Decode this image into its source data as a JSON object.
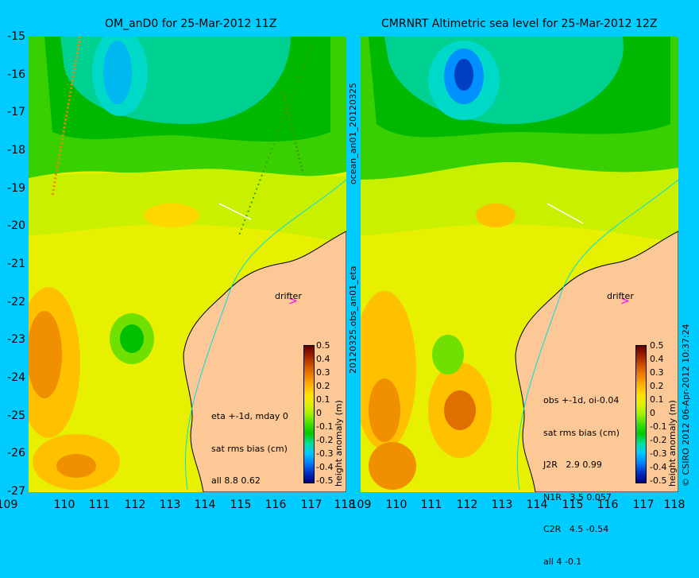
{
  "titles": {
    "left": "OM_anD0 for 25-Mar-2012 11Z",
    "right": "CMRNRT Altimetric sea level  for 25-Mar-2012 12Z"
  },
  "axes": {
    "lat_ticks": [
      "-15",
      "-16",
      "-17",
      "-18",
      "-19",
      "-20",
      "-21",
      "-22",
      "-23",
      "-24",
      "-25",
      "-26",
      "-27"
    ],
    "lon_ticks": [
      "109",
      "110",
      "111",
      "112",
      "113",
      "114",
      "115",
      "116",
      "117",
      "118"
    ]
  },
  "side_labels": {
    "middle_top": "ocean_an01_20120325",
    "middle_bottom": "20120325.obs_an01_eta",
    "credit": "© CSIRO 2012  06-Apr-2012 10:37:24"
  },
  "left_panel": {
    "drifter": "drifter",
    "stats": [
      "eta +-1d, mday 0",
      "sat rms bias (cm)",
      "all 8.8 0.62"
    ]
  },
  "right_panel": {
    "drifter": "drifter",
    "stats": [
      "obs +-1d, oi-0.04",
      "sat rms bias (cm)",
      "J2R   2.9 0.99",
      "N1R   3.5 0.057",
      "C2R   4.5 -0.54",
      "all 4 -0.1"
    ]
  },
  "colorbar": {
    "label": "height anomaly (m)",
    "ticks": [
      "0.5",
      "0.4",
      "0.3",
      "0.2",
      "0.1",
      "0",
      "-0.1",
      "-0.2",
      "-0.3",
      "-0.4",
      "-0.5"
    ],
    "colors": [
      "#000080",
      "#0030c0",
      "#0080ff",
      "#00c8ff",
      "#00e0a0",
      "#00c800",
      "#40e000",
      "#a0f000",
      "#e0f000",
      "#ffe000",
      "#ffb000",
      "#f08000",
      "#d05000",
      "#a02000",
      "#600000"
    ]
  },
  "colors": {
    "background": "#00ccff",
    "land": "#fcc896",
    "drifter_marker": "#ff00ff"
  }
}
